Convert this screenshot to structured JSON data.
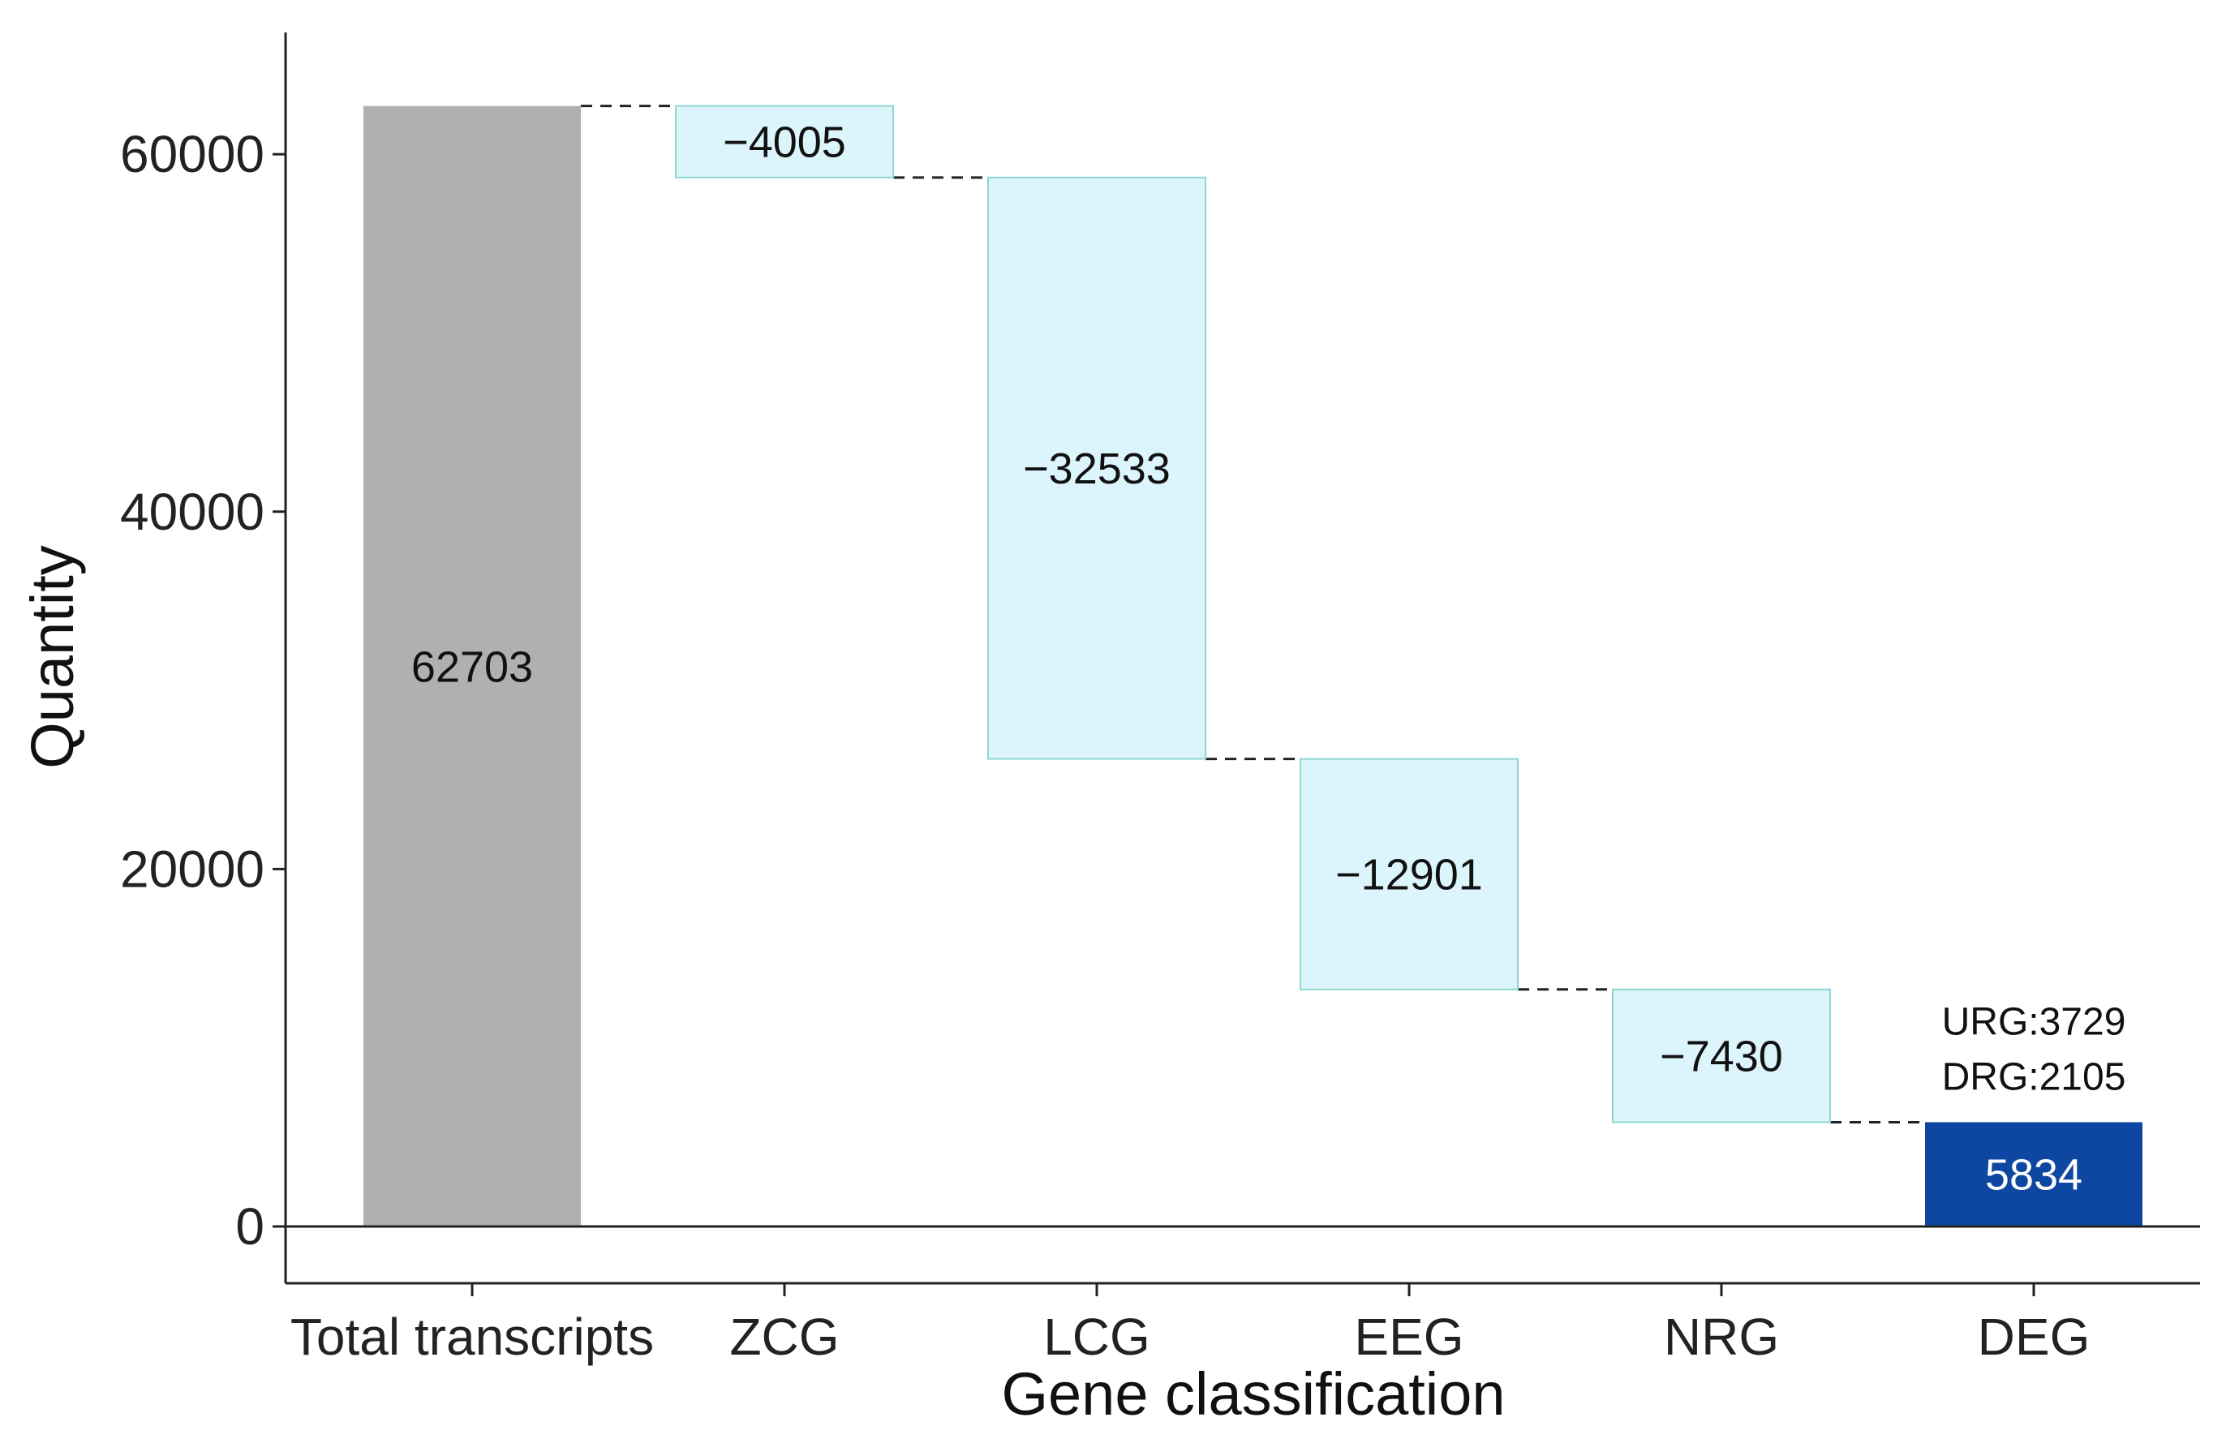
{
  "chart_data": {
    "type": "bar",
    "subtype": "waterfall",
    "xlabel": "Gene classification",
    "ylabel": "Quantity",
    "ylim": [
      0,
      65000
    ],
    "yticks": [
      0,
      20000,
      40000,
      60000
    ],
    "ytick_labels": [
      "0",
      "20000",
      "40000",
      "60000"
    ],
    "categories": [
      "Total transcripts",
      "ZCG",
      "LCG",
      "EEG",
      "NRG",
      "DEG"
    ],
    "bars": [
      {
        "category": "Total transcripts",
        "kind": "total",
        "start": 0,
        "end": 62703,
        "label": "62703",
        "color": "#b0b0b0",
        "label_color": "#111111"
      },
      {
        "category": "ZCG",
        "kind": "decrease",
        "start": 62703,
        "end": 58698,
        "label": "−4005",
        "color": "#dcf5fc",
        "label_color": "#111111"
      },
      {
        "category": "LCG",
        "kind": "decrease",
        "start": 58698,
        "end": 26165,
        "label": "−32533",
        "color": "#dcf5fc",
        "label_color": "#111111"
      },
      {
        "category": "EEG",
        "kind": "decrease",
        "start": 26165,
        "end": 13264,
        "label": "−12901",
        "color": "#dcf5fc",
        "label_color": "#111111"
      },
      {
        "category": "NRG",
        "kind": "decrease",
        "start": 13264,
        "end": 5834,
        "label": "−7430",
        "color": "#dcf5fc",
        "label_color": "#111111"
      },
      {
        "category": "DEG",
        "kind": "total",
        "start": 0,
        "end": 5834,
        "label": "5834",
        "color": "#0d47a1",
        "label_color": "#ffffff"
      }
    ],
    "annotations": [
      {
        "category": "DEG",
        "lines": [
          "URG:3729",
          "DRG:2105"
        ]
      }
    ],
    "colors": {
      "total": "#b0b0b0",
      "decrease": "#dcf5fc",
      "decrease_border": "#8fd6cf",
      "final": "#0d47a1"
    },
    "connectors": "dashed",
    "grid": false,
    "legend": "none"
  }
}
